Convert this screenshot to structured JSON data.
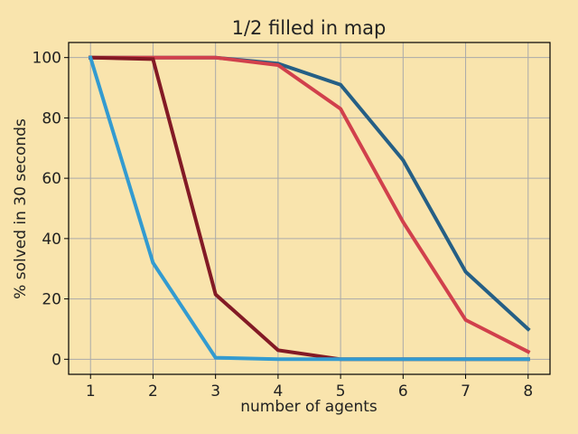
{
  "chart_data": {
    "type": "line",
    "title": "1/2 filled in map",
    "xlabel": "number of agents",
    "ylabel": "% solved in 30 seconds",
    "x": [
      1,
      2,
      3,
      4,
      5,
      6,
      7,
      8
    ],
    "xticks": [
      "1",
      "2",
      "3",
      "4",
      "5",
      "6",
      "7",
      "8"
    ],
    "yticks": [
      "0",
      "20",
      "40",
      "60",
      "80",
      "100"
    ],
    "ytick_values": [
      0,
      20,
      40,
      60,
      80,
      100
    ],
    "xlim": [
      0.65,
      8.35
    ],
    "ylim": [
      -5,
      105
    ],
    "grid": true,
    "legend": false,
    "series": [
      {
        "color": "#255f85",
        "values": [
          100,
          100,
          100,
          98,
          91,
          66,
          29,
          10
        ]
      },
      {
        "color": "#d1404c",
        "values": [
          100,
          100,
          100,
          97.5,
          83,
          45.5,
          13,
          2.5
        ]
      },
      {
        "color": "#831a25",
        "values": [
          100,
          99.5,
          21.5,
          3,
          0,
          0,
          0,
          0
        ]
      },
      {
        "color": "#339bd0",
        "values": [
          100,
          32,
          0.5,
          0,
          0,
          0,
          0,
          0
        ]
      }
    ],
    "colors": {
      "background": "#f9e4ad",
      "grid": "#aaaaaa",
      "axes": "#000000"
    }
  }
}
